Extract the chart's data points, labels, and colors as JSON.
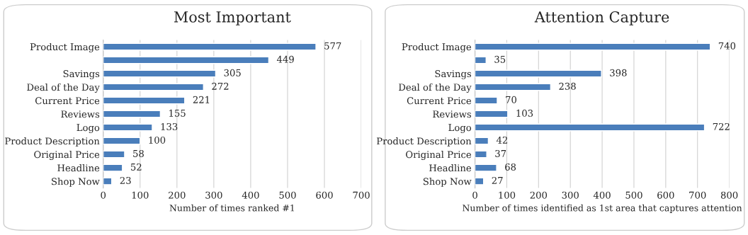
{
  "chart_data": [
    {
      "type": "bar",
      "title": "Most Important",
      "xlabel": "Number of times ranked #1",
      "orientation": "horizontal",
      "categories": [
        "Product Image",
        null,
        "Savings",
        "Deal of the Day",
        "Current Price",
        "Reviews",
        "Logo",
        "Product Description",
        "Original Price",
        "Headline",
        "Shop Now"
      ],
      "values": [
        577,
        449,
        305,
        272,
        221,
        155,
        133,
        100,
        58,
        52,
        23
      ],
      "color": "#4a7ebb",
      "xlim": [
        0,
        700
      ],
      "xticks": [
        0,
        100,
        200,
        300,
        400,
        500,
        600,
        700
      ],
      "grid": "x",
      "data_labels": true,
      "legend": false
    },
    {
      "type": "bar",
      "title": "Attention Capture",
      "xlabel": "Number of times identified as 1st area that captures attention",
      "orientation": "horizontal",
      "categories": [
        "Product Image",
        null,
        "Savings",
        "Deal of the Day",
        "Current Price",
        "Reviews",
        "Logo",
        "Product Description",
        "Original Price",
        "Headline",
        "Shop Now"
      ],
      "values": [
        740,
        35,
        398,
        238,
        70,
        103,
        722,
        42,
        37,
        68,
        27
      ],
      "color": "#4a7ebb",
      "xlim": [
        0,
        800
      ],
      "xticks": [
        0,
        100,
        200,
        300,
        400,
        500,
        600,
        700,
        800
      ],
      "grid": "x",
      "data_labels": true,
      "legend": false
    }
  ]
}
